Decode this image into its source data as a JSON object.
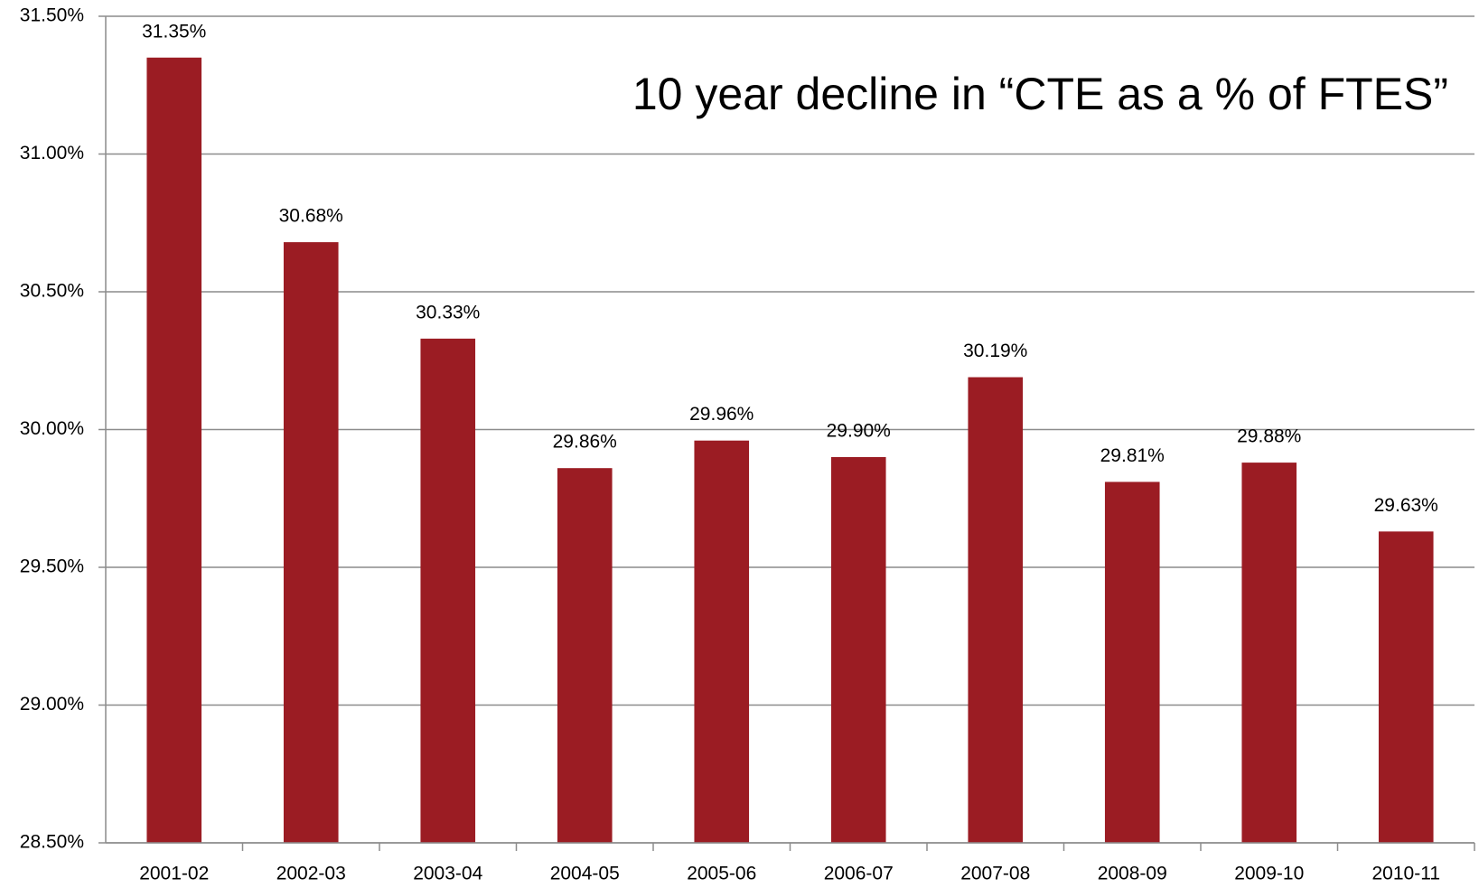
{
  "chart_data": {
    "type": "bar",
    "title": "10 year decline in “CTE as a % of FTES”",
    "categories": [
      "2001-02",
      "2002-03",
      "2003-04",
      "2004-05",
      "2005-06",
      "2006-07",
      "2007-08",
      "2008-09",
      "2009-10",
      "2010-11"
    ],
    "values": [
      31.35,
      30.68,
      30.33,
      29.86,
      29.96,
      29.9,
      30.19,
      29.81,
      29.88,
      29.63
    ],
    "value_labels": [
      "31.35%",
      "30.68%",
      "30.33%",
      "29.86%",
      "29.96%",
      "29.90%",
      "30.19%",
      "29.81%",
      "29.88%",
      "29.63%"
    ],
    "color": "#9b1c23",
    "ylim": [
      28.5,
      31.5
    ],
    "yticks": [
      {
        "value": 28.5,
        "label": "28.50%"
      },
      {
        "value": 29.0,
        "label": "29.00%"
      },
      {
        "value": 29.5,
        "label": "29.50%"
      },
      {
        "value": 30.0,
        "label": "30.00%"
      },
      {
        "value": 30.5,
        "label": "30.50%"
      },
      {
        "value": 31.0,
        "label": "31.00%"
      },
      {
        "value": 31.5,
        "label": "31.50%"
      }
    ],
    "grid": true
  }
}
